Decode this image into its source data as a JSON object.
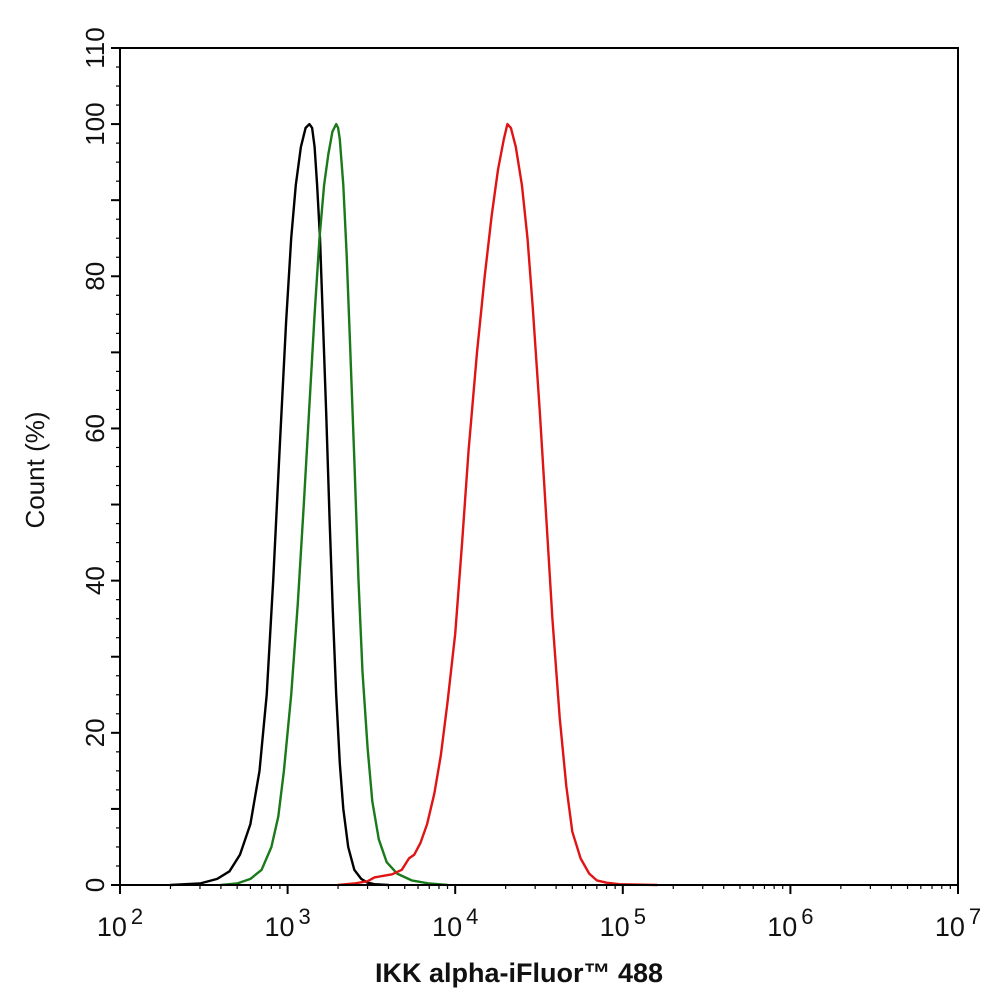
{
  "chart_data": {
    "type": "line",
    "title": "",
    "xlabel": "IKK alpha-iFluor™ 488",
    "ylabel": "Count  (%)",
    "xscale": "log",
    "xlim": [
      100,
      10000000
    ],
    "ylim": [
      0,
      110
    ],
    "grid": false,
    "legend": "none",
    "xticks": [
      {
        "value": 100,
        "base": "10",
        "exp": "2"
      },
      {
        "value": 1000,
        "base": "10",
        "exp": "3"
      },
      {
        "value": 10000,
        "base": "10",
        "exp": "4"
      },
      {
        "value": 100000,
        "base": "10",
        "exp": "5"
      },
      {
        "value": 1000000,
        "base": "10",
        "exp": "6"
      },
      {
        "value": 10000000,
        "base": "10",
        "exp": "7"
      }
    ],
    "yticks": [
      0,
      20,
      40,
      60,
      80,
      100,
      110
    ],
    "series": [
      {
        "color": "#000000",
        "x": [
          200,
          300,
          380,
          450,
          520,
          600,
          680,
          750,
          820,
          900,
          980,
          1050,
          1120,
          1200,
          1280,
          1350,
          1400,
          1450,
          1500,
          1560,
          1620,
          1700,
          1780,
          1860,
          1950,
          2050,
          2150,
          2300,
          2500,
          2750,
          3000,
          3300,
          4000
        ],
        "y": [
          0,
          0.2,
          0.8,
          1.8,
          4,
          8,
          15,
          25,
          40,
          58,
          74,
          85,
          92,
          97,
          99.5,
          100,
          99.5,
          97,
          92,
          85,
          75,
          62,
          48,
          36,
          25,
          16,
          10,
          5,
          2,
          0.8,
          0.3,
          0.1,
          0
        ]
      },
      {
        "color": "#1a7a1a",
        "x": [
          400,
          500,
          600,
          700,
          800,
          880,
          950,
          1050,
          1150,
          1250,
          1350,
          1450,
          1550,
          1650,
          1750,
          1850,
          1950,
          2000,
          2050,
          2150,
          2250,
          2350,
          2500,
          2650,
          2800,
          3000,
          3200,
          3500,
          3900,
          4500,
          5500,
          7000,
          9000
        ],
        "y": [
          0,
          0.2,
          0.8,
          2,
          5,
          9,
          15,
          25,
          37,
          50,
          63,
          75,
          85,
          92,
          96,
          99,
          100,
          99.5,
          98,
          92,
          83,
          72,
          56,
          40,
          28,
          18,
          11,
          6,
          3,
          1.5,
          0.6,
          0.2,
          0
        ]
      },
      {
        "color": "#e01414",
        "x": [
          2000,
          2500,
          3000,
          3300,
          3700,
          4200,
          4800,
          5300,
          5700,
          6200,
          6800,
          7500,
          8200,
          9000,
          10000,
          11000,
          12000,
          13500,
          15000,
          16500,
          18000,
          19500,
          20500,
          21500,
          23000,
          25000,
          27000,
          29000,
          32000,
          35000,
          38000,
          42000,
          46000,
          50000,
          56000,
          63000,
          70000,
          80000,
          95000,
          120000,
          160000
        ],
        "y": [
          0,
          0.2,
          0.5,
          1,
          1.2,
          1.4,
          2,
          3.5,
          4,
          5.5,
          8,
          12,
          17,
          24,
          33,
          45,
          57,
          70,
          80,
          88,
          94,
          98,
          100,
          99.5,
          97,
          92,
          85,
          76,
          62,
          48,
          35,
          22,
          13,
          7,
          3.5,
          1.5,
          0.6,
          0.3,
          0.1,
          0.05,
          0
        ]
      }
    ]
  }
}
